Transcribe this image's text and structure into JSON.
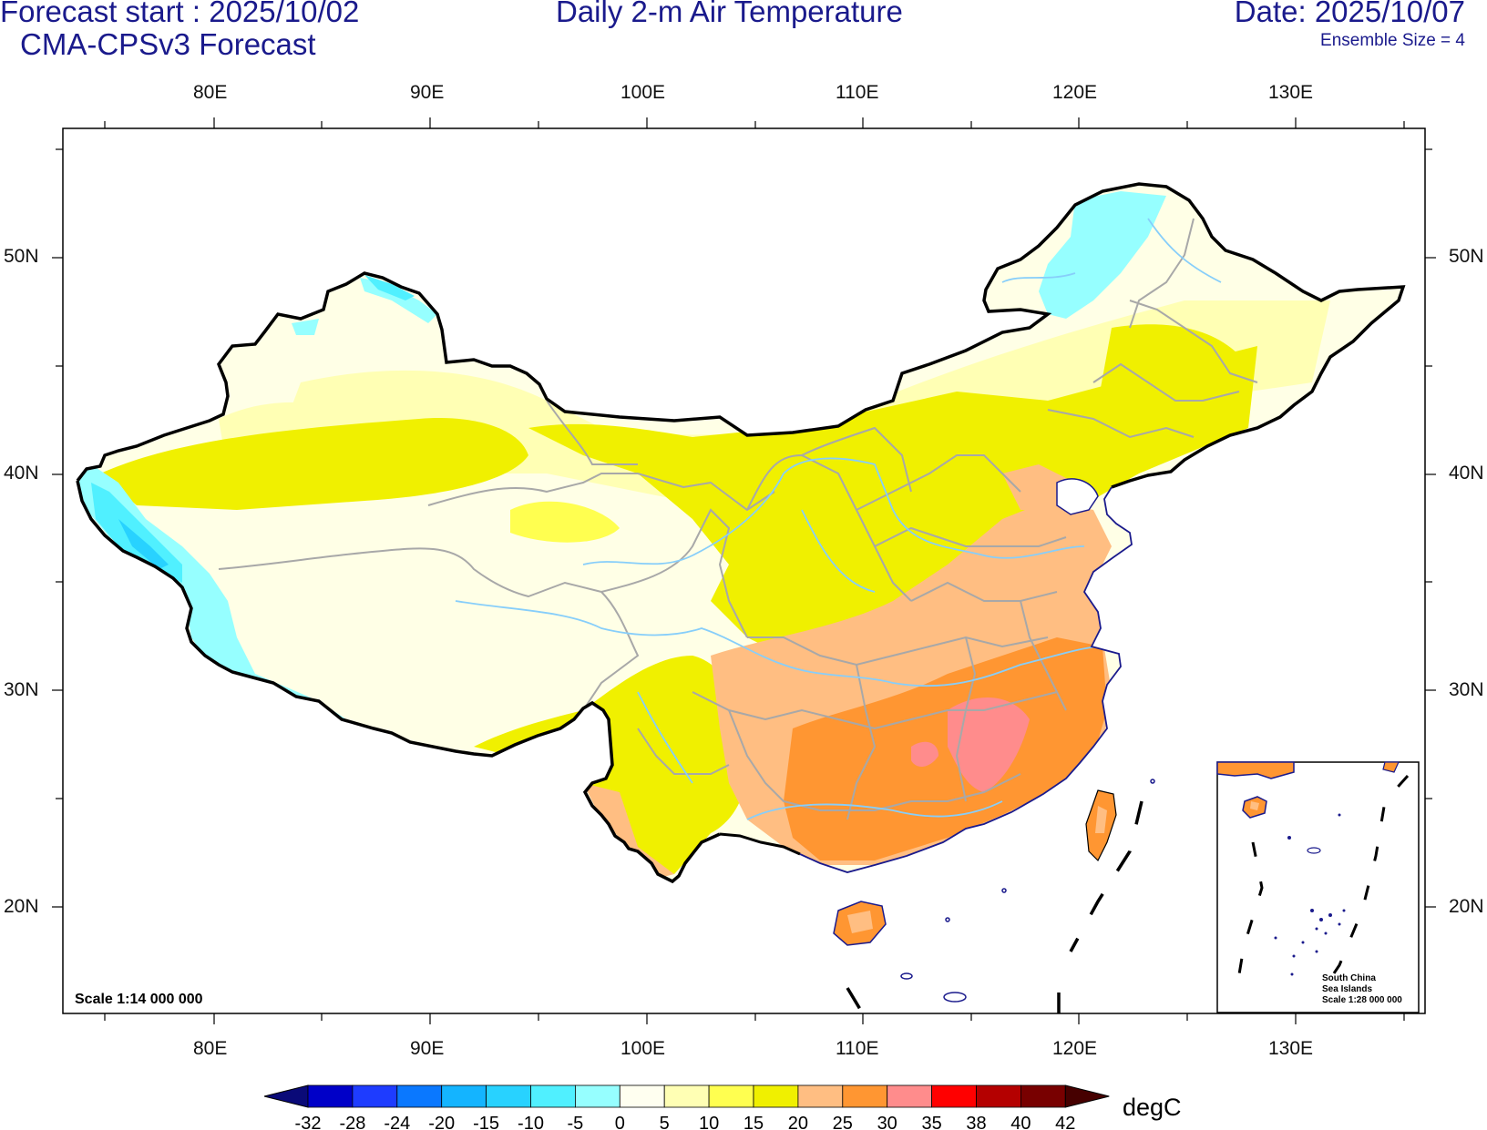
{
  "header": {
    "forecast_start": "Forecast start : 2025/10/02",
    "model": "CMA-CPSv3 Forecast",
    "title": "Daily 2-m Air Temperature",
    "date": "Date: 2025/10/07",
    "ensemble": "Ensemble Size = 4"
  },
  "map": {
    "lon_ticks": [
      "80E",
      "90E",
      "100E",
      "110E",
      "120E",
      "130E"
    ],
    "lat_ticks": [
      "50N",
      "40N",
      "30N",
      "20N"
    ],
    "scale_main": "Scale 1:14 000 000",
    "inset": {
      "line1": "South China",
      "line2": "Sea Islands",
      "line3": "Scale 1:28 000 000"
    }
  },
  "colorbar": {
    "unit": "degC",
    "labels": [
      "-32",
      "-28",
      "-24",
      "-20",
      "-15",
      "-10",
      "-5",
      "0",
      "5",
      "10",
      "15",
      "20",
      "25",
      "30",
      "35",
      "38",
      "40",
      "42"
    ],
    "colors": [
      "#0a0a78",
      "#0000c8",
      "#1e3cff",
      "#0a78ff",
      "#14b4ff",
      "#28d2ff",
      "#50f0ff",
      "#96ffff",
      "#fffff0",
      "#ffffb4",
      "#ffff50",
      "#f0f000",
      "#ffbe82",
      "#ff9632",
      "#ff8c8c",
      "#ff0000",
      "#b40000",
      "#780000",
      "#460000"
    ]
  }
}
